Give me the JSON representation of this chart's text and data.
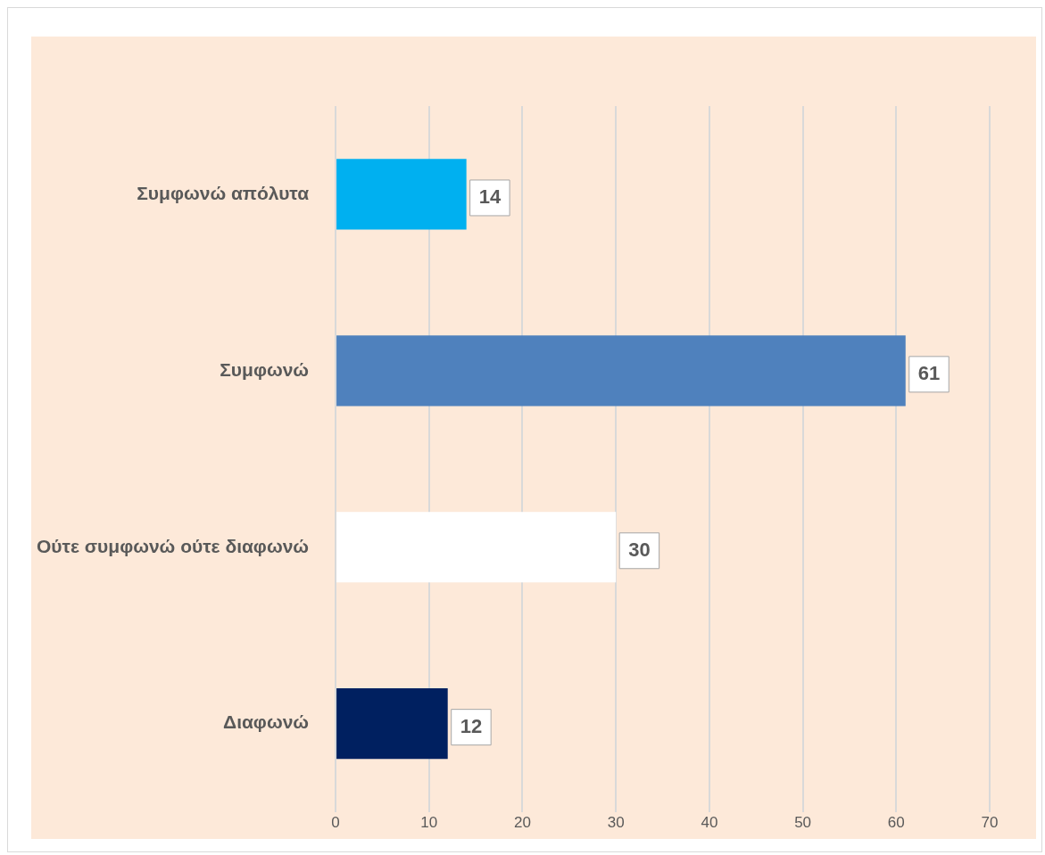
{
  "chart_data": {
    "type": "bar",
    "orientation": "horizontal",
    "categories": [
      "Συμφωνώ απόλυτα",
      "Συμφωνώ",
      "Ούτε συμφωνώ ούτε διαφωνώ",
      "Διαφωνώ"
    ],
    "values": [
      14,
      61,
      30,
      12
    ],
    "colors": [
      "#00b0f0",
      "#4f81bd",
      "#ffffff",
      "#002060"
    ],
    "xlim": [
      0,
      70
    ],
    "xticks": [
      0,
      10,
      20,
      30,
      40,
      50,
      60,
      70
    ],
    "grid": "x",
    "data_labels": true,
    "legend": false
  }
}
